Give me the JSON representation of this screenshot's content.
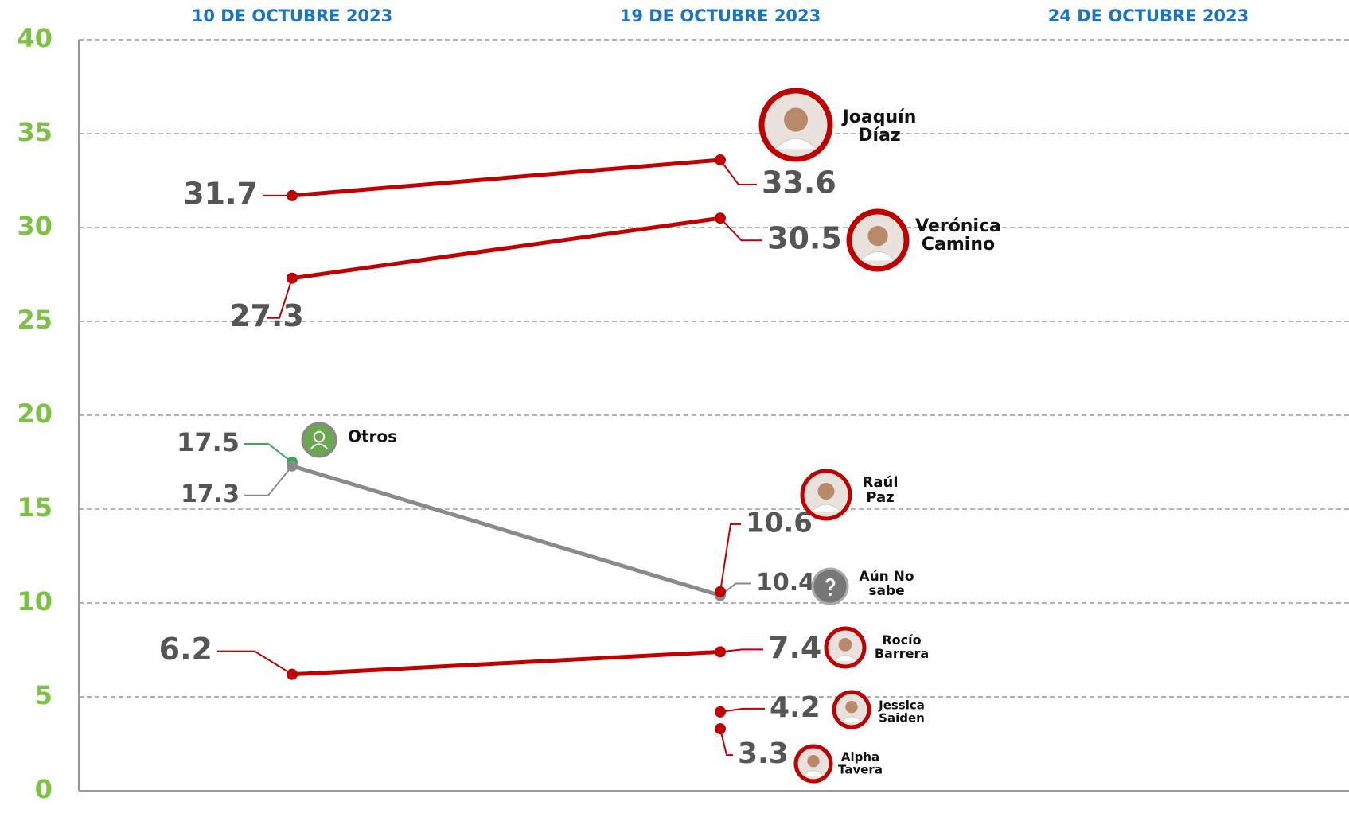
{
  "chart_data": {
    "type": "line",
    "x": [
      "10 DE OCTUBRE 2023",
      "19 DE OCTUBRE 2023",
      "24 DE OCTUBRE 2023"
    ],
    "ylim": [
      0,
      40
    ],
    "yticks": [
      0,
      5,
      10,
      15,
      20,
      25,
      30,
      35,
      40
    ],
    "grid": true,
    "series": [
      {
        "name": "Joaquín Díaz",
        "color": "#c00000",
        "values": [
          31.7,
          33.6,
          null
        ]
      },
      {
        "name": "Verónica Camino",
        "color": "#c00000",
        "values": [
          27.3,
          30.5,
          null
        ]
      },
      {
        "name": "Otros",
        "color": "#3aa655",
        "values": [
          17.5,
          null,
          null
        ]
      },
      {
        "name": "Aún No sabe",
        "color": "#8a8a8a",
        "values": [
          17.3,
          10.4,
          null
        ]
      },
      {
        "name": "Raúl Paz",
        "color": "#c00000",
        "values": [
          null,
          10.6,
          null
        ]
      },
      {
        "name": "Rocío Barrera",
        "color": "#c00000",
        "values": [
          6.2,
          7.4,
          null
        ]
      },
      {
        "name": "Jessica Saiden",
        "color": "#c00000",
        "values": [
          null,
          4.2,
          null
        ]
      },
      {
        "name": "Alpha Tavera",
        "color": "#c00000",
        "values": [
          null,
          3.3,
          null
        ]
      }
    ]
  }
}
